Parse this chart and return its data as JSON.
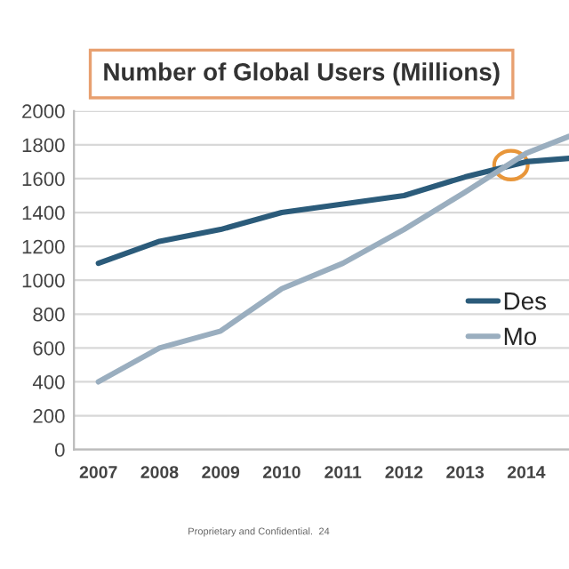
{
  "chart_data": {
    "type": "line",
    "title": "Number of Global Users (Millions)",
    "x": [
      2007,
      2008,
      2009,
      2010,
      2011,
      2012,
      2013,
      2014,
      2014.7
    ],
    "series": [
      {
        "name": "Des",
        "color": "#2b5b7a",
        "values": [
          1100,
          1230,
          1300,
          1400,
          1450,
          1500,
          1610,
          1700,
          1720
        ]
      },
      {
        "name": "Mo",
        "color": "#9aaebf",
        "values": [
          400,
          600,
          700,
          950,
          1100,
          1300,
          1520,
          1750,
          1850
        ]
      }
    ],
    "xlim": [
      2006.6,
      2014.7
    ],
    "xticks": [
      2007,
      2008,
      2009,
      2010,
      2011,
      2012,
      2013,
      2014
    ],
    "ylim": [
      0,
      2000
    ],
    "yticks": [
      0,
      200,
      400,
      600,
      800,
      1000,
      1200,
      1400,
      1600,
      1800,
      2000
    ],
    "grid": "y",
    "legend": "right",
    "marker": "none",
    "line_style": "solid",
    "annotations": [
      "Proprietary and Confidential.",
      "24"
    ]
  }
}
